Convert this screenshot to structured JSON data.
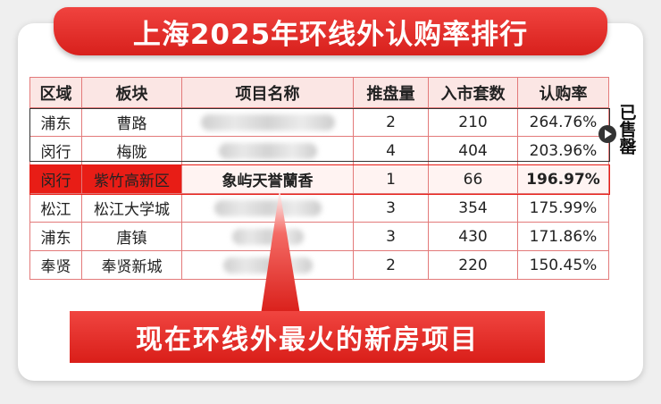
{
  "title": "上海2025年环线外认购率排行",
  "table": {
    "headers": [
      "区域",
      "板块",
      "项目名称",
      "推盘量",
      "入市套数",
      "认购率"
    ],
    "rows": [
      {
        "district": "浦东",
        "board": "曹路",
        "project": "",
        "supply": "2",
        "units": "210",
        "rate": "264.76%"
      },
      {
        "district": "闵行",
        "board": "梅陇",
        "project": "",
        "supply": "4",
        "units": "404",
        "rate": "203.96%"
      },
      {
        "district": "闵行",
        "board": "紫竹高新区",
        "project": "象屿天誉蘭香",
        "supply": "1",
        "units": "66",
        "rate": "196.97%"
      },
      {
        "district": "松江",
        "board": "松江大学城",
        "project": "",
        "supply": "3",
        "units": "354",
        "rate": "175.99%"
      },
      {
        "district": "浦东",
        "board": "唐镇",
        "project": "",
        "supply": "3",
        "units": "430",
        "rate": "171.86%"
      },
      {
        "district": "奉贤",
        "board": "奉贤新城",
        "project": "",
        "supply": "2",
        "units": "220",
        "rate": "150.45%"
      }
    ]
  },
  "sold_label": "已售罄",
  "callout": "现在环线外最火的新房项目",
  "colors": {
    "accent": "#e81d16",
    "header_bg": "#fbe6e4",
    "border": "#e37a7a"
  }
}
